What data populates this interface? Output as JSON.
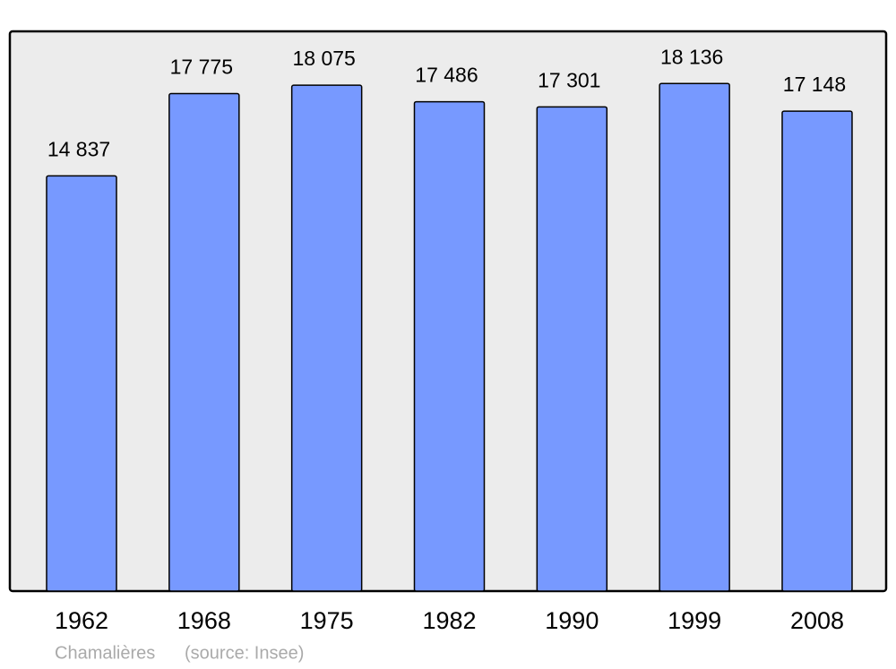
{
  "chart_data": {
    "type": "bar",
    "categories": [
      "1962",
      "1968",
      "1975",
      "1982",
      "1990",
      "1999",
      "2008"
    ],
    "values": [
      14837,
      17775,
      18075,
      17486,
      17301,
      18136,
      17148
    ],
    "value_labels": [
      "14 837",
      "17 775",
      "18 075",
      "17 486",
      "17 301",
      "18 136",
      "17 148"
    ],
    "color": "#7799ff",
    "ylim": [
      0,
      20000
    ],
    "caption": "Chamalières",
    "source": "(source: Insee)"
  }
}
